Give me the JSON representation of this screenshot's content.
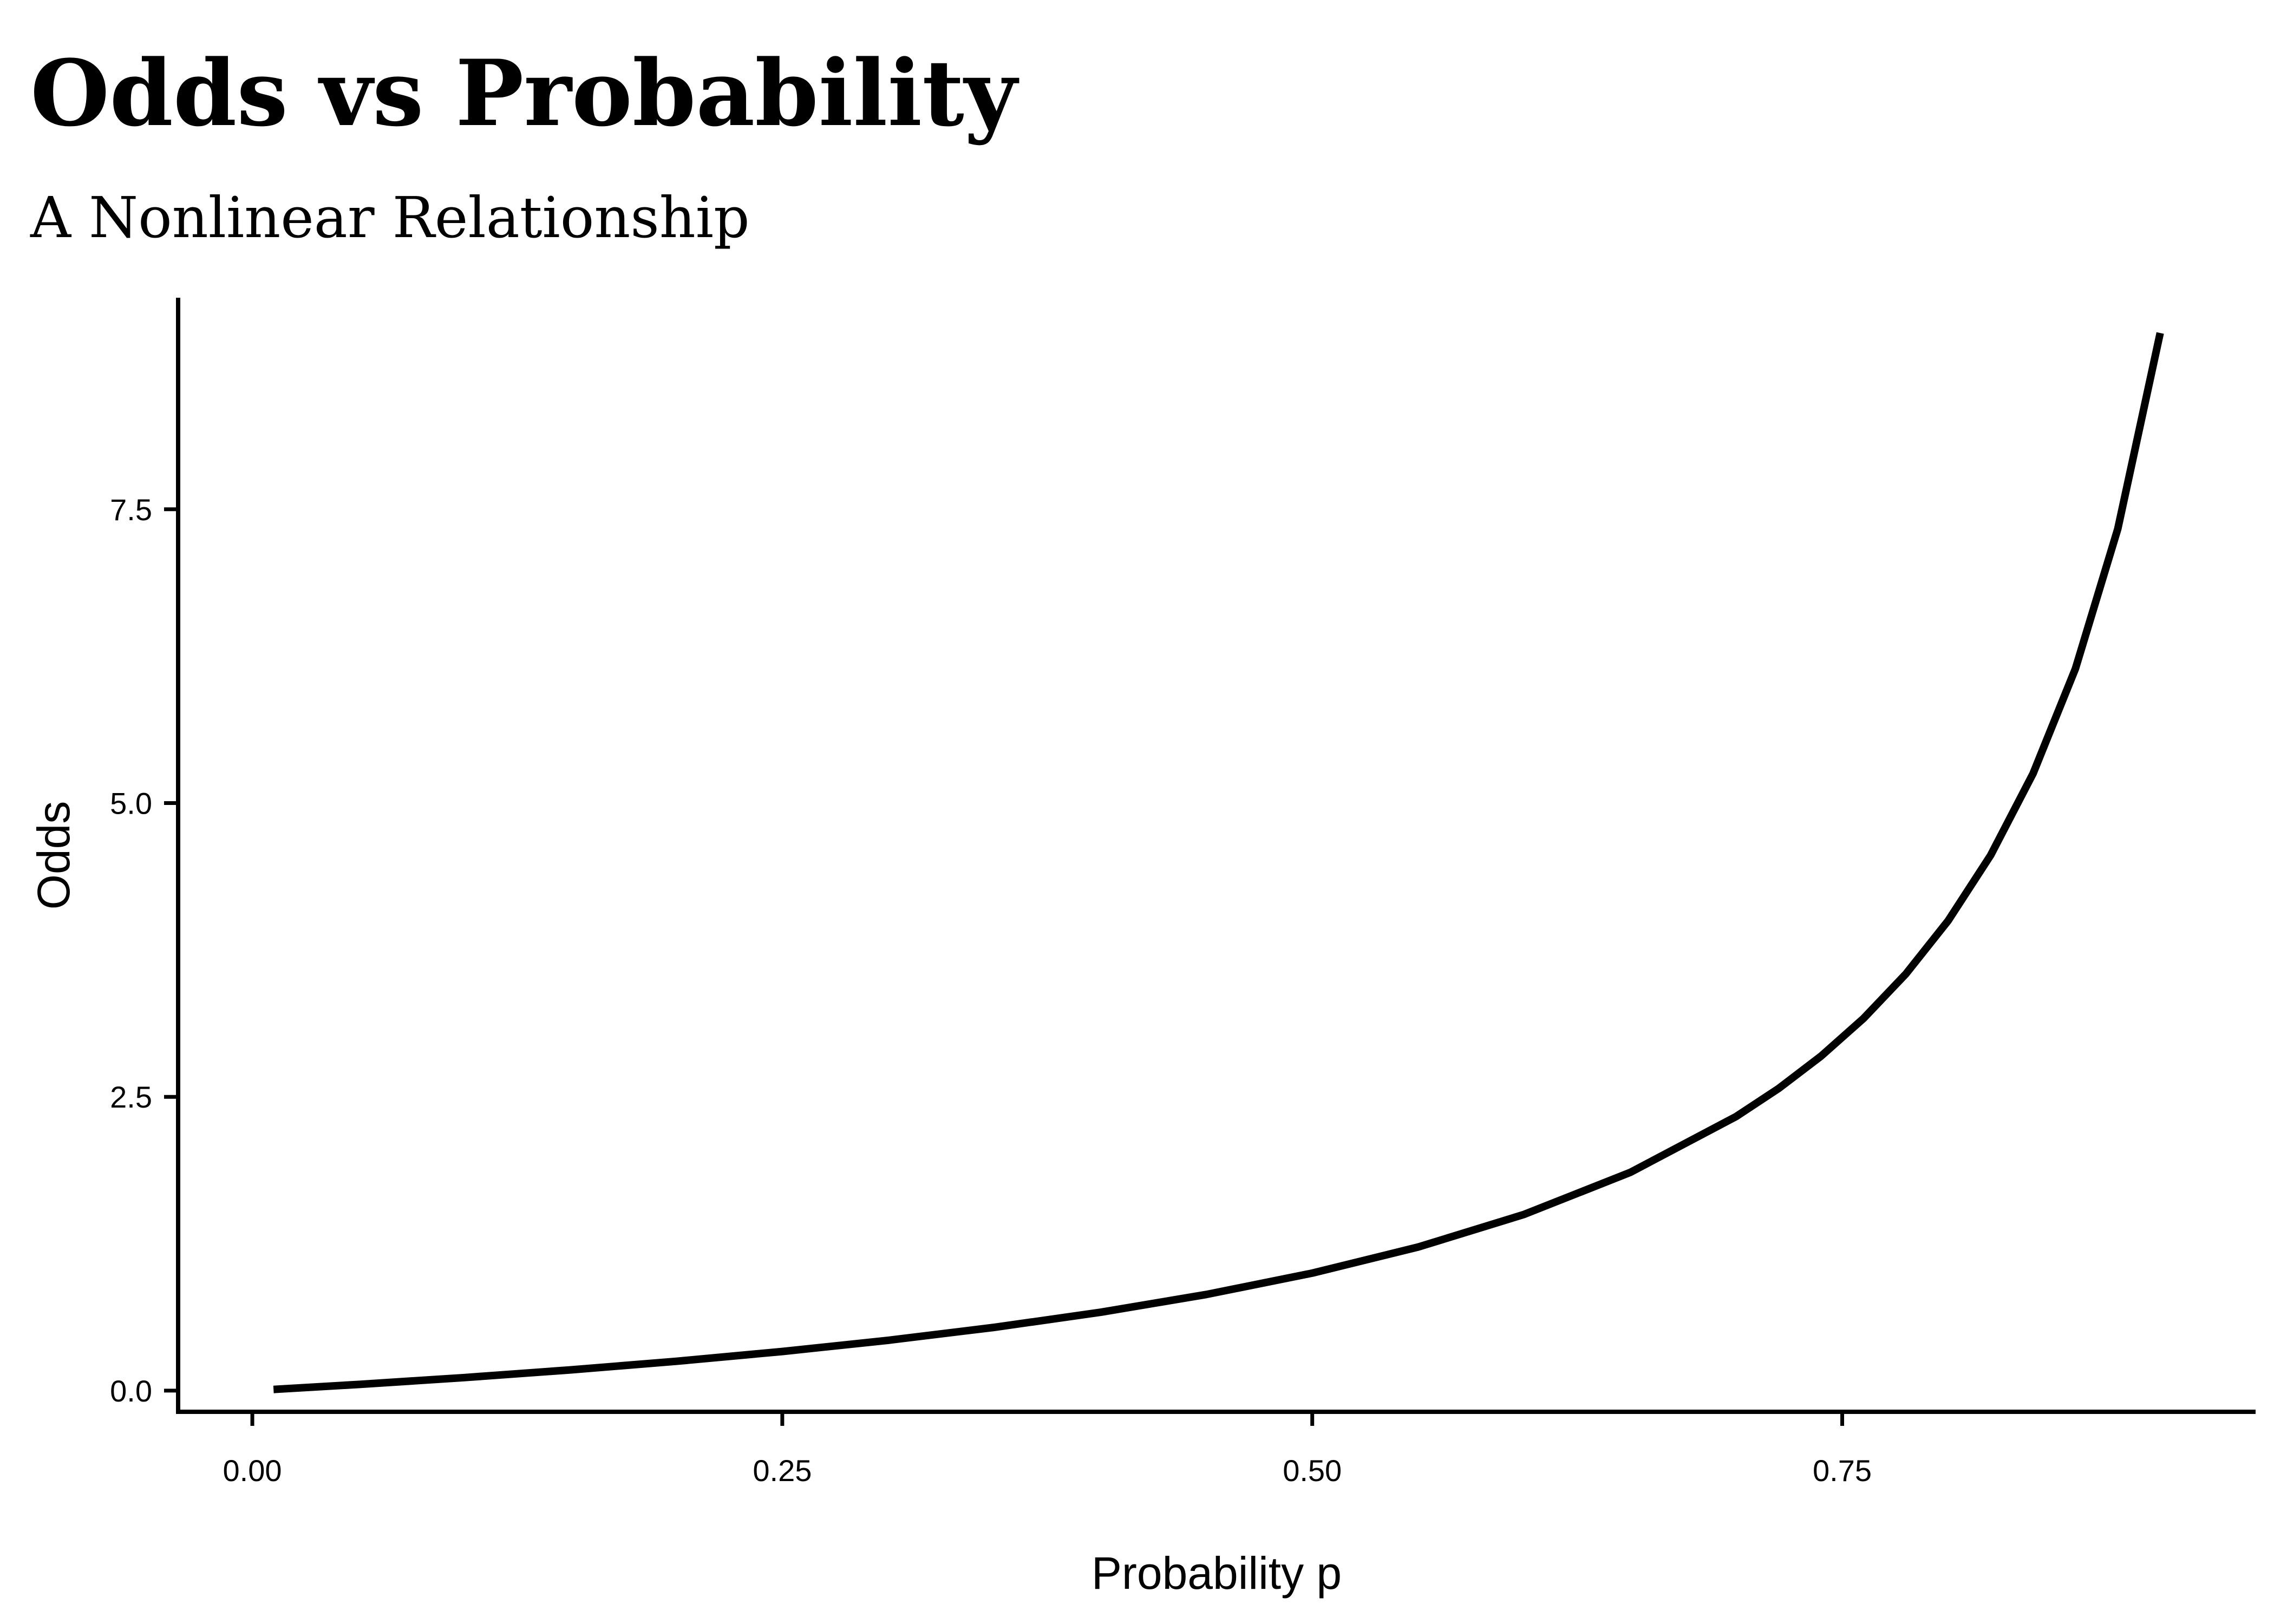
{
  "chart_data": {
    "type": "line",
    "title": "Odds vs Probability",
    "subtitle": "A Nonlinear Relationship",
    "xlabel": "Probability p",
    "ylabel": "Odds",
    "xlim": [
      -0.035,
      0.945
    ],
    "ylim": [
      -0.18,
      9.3
    ],
    "xticks": [
      0.0,
      0.25,
      0.5,
      0.75
    ],
    "xtick_labels": [
      "0.00",
      "0.25",
      "0.50",
      "0.75"
    ],
    "yticks": [
      0.0,
      2.5,
      5.0,
      7.5
    ],
    "ytick_labels": [
      "0.0",
      "2.5",
      "5.0",
      "7.5"
    ],
    "grid": false,
    "line_color": "#000000",
    "series": [
      {
        "x": [
          0.01,
          0.05,
          0.1,
          0.15,
          0.2,
          0.25,
          0.3,
          0.35,
          0.4,
          0.45,
          0.5,
          0.55,
          0.6,
          0.65,
          0.7,
          0.72,
          0.74,
          0.76,
          0.78,
          0.8,
          0.82,
          0.84,
          0.86,
          0.88,
          0.9
        ],
        "values": [
          0.0101,
          0.0526,
          0.1111,
          0.1765,
          0.25,
          0.3333,
          0.4286,
          0.5385,
          0.6667,
          0.8182,
          1.0,
          1.2222,
          1.5,
          1.8571,
          2.3333,
          2.5714,
          2.8462,
          3.1667,
          3.5455,
          4.0,
          4.5556,
          5.25,
          6.1429,
          7.3333,
          9.0
        ]
      }
    ]
  }
}
